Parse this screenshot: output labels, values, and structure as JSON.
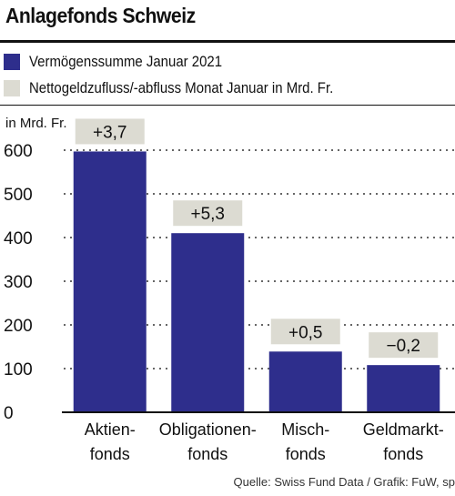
{
  "title": "Anlagefonds Schweiz",
  "legend": [
    {
      "label": "Vermögenssumme Januar 2021",
      "color": "#2e2e8c"
    },
    {
      "label": "Nettogeldzufluss/-abfluss Monat Januar in Mrd. Fr.",
      "color": "#dcdbd2"
    }
  ],
  "source": "Quelle: Swiss Fund Data / Grafik: FuW, sp",
  "chart_data": {
    "type": "bar",
    "categories": [
      [
        "Aktien-",
        "fonds"
      ],
      [
        "Obligationen-",
        "fonds"
      ],
      [
        "Misch-",
        "fonds"
      ],
      [
        "Geldmarkt-",
        "fonds"
      ]
    ],
    "values": [
      597,
      410,
      139,
      108
    ],
    "value_labels": [
      "+3,7",
      "+5,3",
      "+0,5",
      "−0,2"
    ],
    "ylabel": "in Mrd. Fr.",
    "ylim": [
      0,
      600
    ],
    "yticks": [
      0,
      100,
      200,
      300,
      400,
      500,
      600
    ],
    "grid": true,
    "bar_color": "#2e2e8c",
    "label_box_color": "#dcdbd2"
  }
}
